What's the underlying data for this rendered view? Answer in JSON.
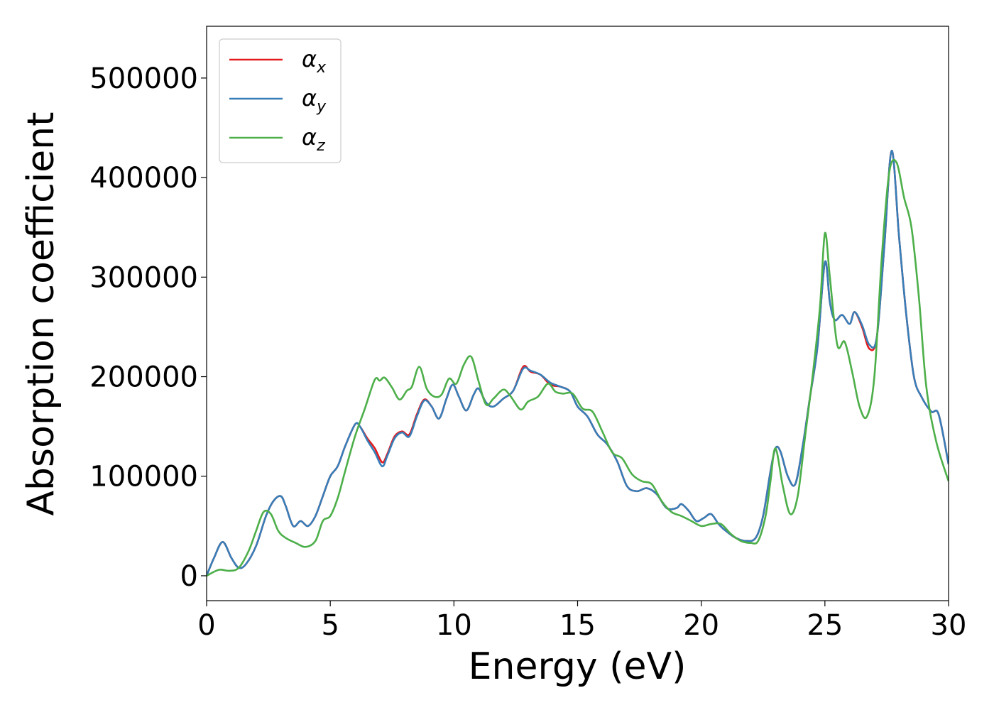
{
  "chart_data": {
    "type": "line",
    "xlabel": "Energy (eV)",
    "ylabel": "Absorption coefficient",
    "xlim": [
      0,
      30
    ],
    "ylim": [
      -25000,
      552000
    ],
    "xticks": [
      0,
      5,
      10,
      15,
      20,
      25,
      30
    ],
    "xtick_labels": [
      "0",
      "5",
      "10",
      "15",
      "20",
      "25",
      "30"
    ],
    "yticks": [
      0,
      100000,
      200000,
      300000,
      400000,
      500000
    ],
    "ytick_labels": [
      "0",
      "100000",
      "200000",
      "300000",
      "400000",
      "500000"
    ],
    "grid": false,
    "legend_position": "top-left",
    "series": [
      {
        "name": "αx",
        "symbol": "α",
        "subscript": "x",
        "color": "#e41a1c",
        "x": [
          0,
          0.3,
          0.65,
          1.0,
          1.3,
          1.6,
          2.0,
          2.4,
          2.7,
          3.0,
          3.2,
          3.5,
          3.8,
          4.1,
          4.4,
          4.7,
          5.0,
          5.3,
          5.6,
          6.0,
          6.2,
          6.5,
          6.8,
          7.1,
          7.3,
          7.6,
          7.9,
          8.2,
          8.5,
          8.8,
          9.1,
          9.4,
          9.7,
          9.95,
          10.2,
          10.5,
          10.8,
          11.0,
          11.3,
          11.6,
          12.0,
          12.4,
          12.8,
          13.1,
          13.5,
          13.9,
          14.3,
          14.7,
          15.0,
          15.4,
          15.8,
          16.2,
          16.6,
          17.0,
          17.4,
          17.8,
          18.2,
          18.6,
          19.0,
          19.2,
          19.5,
          19.8,
          20.1,
          20.4,
          20.7,
          21.0,
          21.4,
          21.8,
          22.2,
          22.5,
          22.8,
          23.0,
          23.2,
          23.5,
          23.8,
          24.1,
          24.4,
          24.7,
          25.0,
          25.2,
          25.4,
          25.7,
          26.0,
          26.2,
          26.5,
          26.8,
          27.1,
          27.4,
          27.7,
          28.0,
          28.3,
          28.6,
          28.9,
          29.3,
          29.6,
          30.0
        ],
        "values": [
          0,
          18000,
          34000,
          18000,
          8000,
          12000,
          30000,
          60000,
          75000,
          80000,
          70000,
          50000,
          55000,
          50000,
          60000,
          80000,
          100000,
          110000,
          130000,
          152000,
          150000,
          138000,
          128000,
          114000,
          122000,
          140000,
          145000,
          142000,
          162000,
          177000,
          170000,
          158000,
          178000,
          192000,
          180000,
          166000,
          182000,
          188000,
          174000,
          170000,
          178000,
          186000,
          210000,
          205000,
          202000,
          192000,
          190000,
          185000,
          170000,
          160000,
          142000,
          132000,
          115000,
          90000,
          85000,
          88000,
          82000,
          68000,
          68000,
          72000,
          65000,
          55000,
          58000,
          62000,
          52000,
          45000,
          38000,
          35000,
          38000,
          60000,
          105000,
          128000,
          125000,
          100000,
          92000,
          130000,
          180000,
          230000,
          315000,
          275000,
          257000,
          262000,
          253000,
          265000,
          250000,
          228000,
          240000,
          330000,
          427000,
          340000,
          260000,
          200000,
          180000,
          165000,
          162000,
          112000
        ]
      },
      {
        "name": "αy",
        "symbol": "α",
        "subscript": "y",
        "color": "#377eb8",
        "x": [
          0,
          0.3,
          0.65,
          1.0,
          1.3,
          1.6,
          2.0,
          2.4,
          2.7,
          3.0,
          3.2,
          3.5,
          3.8,
          4.1,
          4.4,
          4.7,
          5.0,
          5.3,
          5.6,
          6.0,
          6.2,
          6.5,
          6.8,
          7.1,
          7.3,
          7.6,
          7.9,
          8.2,
          8.5,
          8.8,
          9.1,
          9.4,
          9.7,
          9.95,
          10.2,
          10.5,
          10.8,
          11.0,
          11.3,
          11.6,
          12.0,
          12.4,
          12.8,
          13.1,
          13.5,
          13.9,
          14.3,
          14.7,
          15.0,
          15.4,
          15.8,
          16.2,
          16.6,
          17.0,
          17.4,
          17.8,
          18.2,
          18.6,
          19.0,
          19.2,
          19.5,
          19.8,
          20.1,
          20.4,
          20.7,
          21.0,
          21.4,
          21.8,
          22.2,
          22.5,
          22.8,
          23.0,
          23.2,
          23.5,
          23.8,
          24.1,
          24.4,
          24.7,
          25.0,
          25.2,
          25.4,
          25.7,
          26.0,
          26.2,
          26.5,
          26.8,
          27.1,
          27.4,
          27.7,
          28.0,
          28.3,
          28.6,
          28.9,
          29.3,
          29.6,
          30.0
        ],
        "values": [
          0,
          18000,
          34000,
          18000,
          8000,
          12000,
          30000,
          60000,
          75000,
          80000,
          70000,
          50000,
          55000,
          50000,
          60000,
          80000,
          100000,
          110000,
          130000,
          152000,
          150000,
          136000,
          124000,
          110000,
          120000,
          138000,
          144000,
          140000,
          160000,
          176000,
          170000,
          158000,
          178000,
          192000,
          180000,
          166000,
          182000,
          188000,
          174000,
          170000,
          178000,
          186000,
          208000,
          206000,
          202000,
          194000,
          190000,
          185000,
          170000,
          160000,
          142000,
          132000,
          115000,
          90000,
          85000,
          88000,
          82000,
          68000,
          68000,
          72000,
          65000,
          55000,
          58000,
          62000,
          52000,
          45000,
          38000,
          35000,
          38000,
          60000,
          105000,
          128000,
          125000,
          100000,
          92000,
          130000,
          180000,
          230000,
          315000,
          275000,
          257000,
          262000,
          253000,
          265000,
          252000,
          232000,
          240000,
          330000,
          427000,
          340000,
          260000,
          200000,
          180000,
          165000,
          162000,
          112000
        ]
      },
      {
        "name": "αz",
        "symbol": "α",
        "subscript": "z",
        "color": "#4daf4a",
        "x": [
          0,
          0.5,
          0.9,
          1.3,
          1.7,
          2.0,
          2.3,
          2.6,
          2.9,
          3.2,
          3.6,
          4.0,
          4.4,
          4.7,
          5.0,
          5.3,
          5.6,
          6.0,
          6.4,
          6.8,
          7.0,
          7.2,
          7.5,
          7.8,
          8.1,
          8.3,
          8.6,
          8.9,
          9.2,
          9.5,
          9.8,
          10.1,
          10.4,
          10.7,
          11.0,
          11.3,
          11.6,
          12.0,
          12.3,
          12.7,
          13.0,
          13.4,
          13.8,
          14.1,
          14.4,
          14.8,
          15.2,
          15.6,
          16.0,
          16.4,
          16.8,
          17.2,
          17.6,
          18.0,
          18.4,
          18.8,
          19.2,
          19.6,
          20.0,
          20.4,
          20.8,
          21.2,
          21.6,
          22.0,
          22.3,
          22.6,
          22.8,
          23.0,
          23.3,
          23.6,
          23.9,
          24.2,
          24.5,
          24.8,
          25.0,
          25.2,
          25.5,
          25.8,
          26.1,
          26.4,
          26.7,
          27.0,
          27.3,
          27.6,
          27.9,
          28.2,
          28.5,
          28.8,
          29.1,
          29.5,
          30.0
        ],
        "values": [
          0,
          6000,
          5000,
          8000,
          25000,
          45000,
          64000,
          62000,
          45000,
          38000,
          33000,
          29000,
          35000,
          55000,
          60000,
          78000,
          105000,
          140000,
          168000,
          197000,
          196000,
          199000,
          189000,
          177000,
          186000,
          190000,
          210000,
          188000,
          180000,
          182000,
          198000,
          193000,
          212000,
          220000,
          195000,
          172000,
          178000,
          187000,
          180000,
          167000,
          175000,
          180000,
          193000,
          185000,
          183000,
          183000,
          168000,
          165000,
          145000,
          124000,
          118000,
          102000,
          95000,
          92000,
          75000,
          64000,
          60000,
          55000,
          50000,
          52000,
          52000,
          42000,
          35000,
          33000,
          35000,
          60000,
          95000,
          128000,
          90000,
          62000,
          80000,
          140000,
          200000,
          270000,
          344000,
          300000,
          232000,
          235000,
          205000,
          170000,
          160000,
          200000,
          320000,
          405000,
          415000,
          380000,
          350000,
          280000,
          190000,
          135000,
          95000
        ]
      }
    ]
  }
}
